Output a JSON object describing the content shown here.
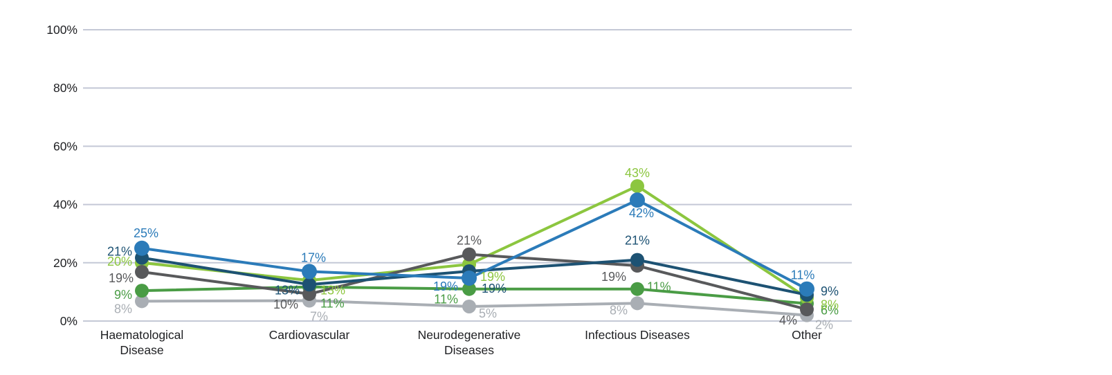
{
  "chart_data": {
    "type": "line",
    "title": "",
    "categories": [
      {
        "lines": [
          "Haematological",
          "Disease"
        ]
      },
      {
        "lines": [
          "Cardiovascular"
        ]
      },
      {
        "lines": [
          "Neurodegenerative",
          "Diseases"
        ]
      },
      {
        "lines": [
          "Infectious Diseases"
        ]
      },
      {
        "lines": [
          "Other"
        ]
      }
    ],
    "y_axis": {
      "ticks": [
        "0%",
        "20%",
        "40%",
        "60%",
        "80%",
        "100%"
      ],
      "tick_values": [
        0,
        20,
        40,
        60,
        80,
        100
      ],
      "range": [
        0,
        100
      ]
    },
    "grid": true,
    "grid_color": "#c4c8d6",
    "axis_text_color": "#202124",
    "data_label_suffix": "%",
    "legend": "none",
    "series": [
      {
        "name": "light-gray",
        "color": "#a9aeb4",
        "values": [
          8,
          7,
          5,
          8,
          2
        ]
      },
      {
        "name": "dark-green",
        "color": "#4a9c45",
        "values": [
          9,
          11,
          11,
          11,
          6
        ]
      },
      {
        "name": "light-green",
        "color": "#8cc63f",
        "values": [
          20,
          13,
          19,
          43,
          8
        ]
      },
      {
        "name": "dark-gray",
        "color": "#58595b",
        "values": [
          19,
          10,
          21,
          19,
          4
        ]
      },
      {
        "name": "dark-blue",
        "color": "#1d5273",
        "values": [
          21,
          13,
          19,
          21,
          9
        ]
      },
      {
        "name": "blue",
        "color": "#2b7bb9",
        "values": [
          25,
          17,
          19,
          42,
          11
        ]
      }
    ]
  }
}
